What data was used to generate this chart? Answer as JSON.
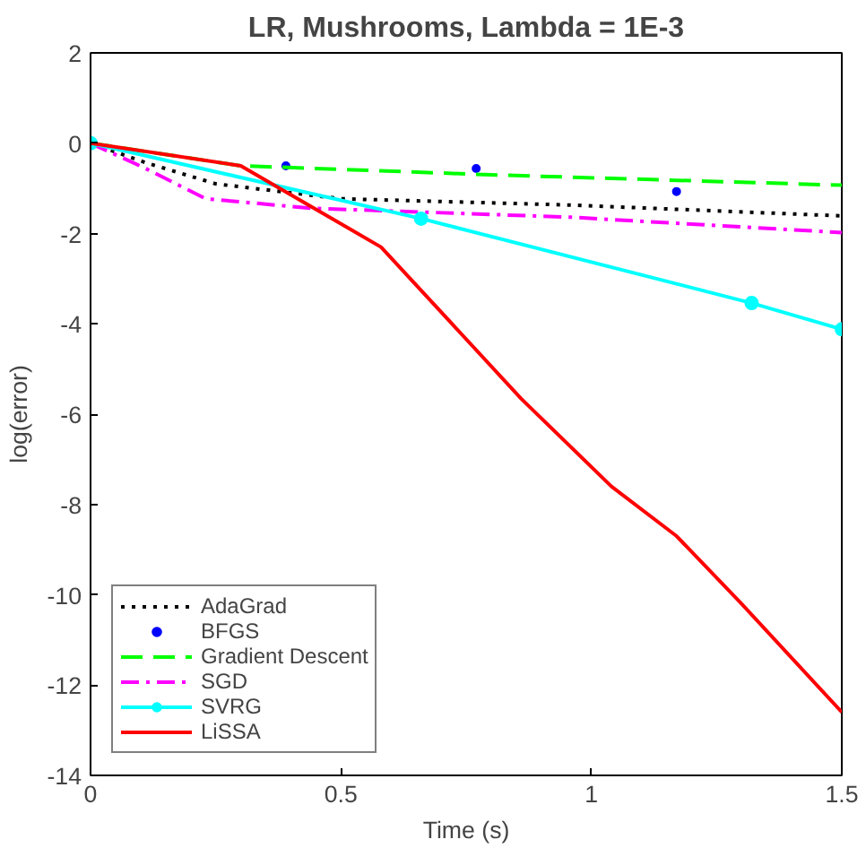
{
  "chart_data": {
    "type": "line",
    "title": "LR, Mushrooms, Lambda = 1E-3",
    "xlabel": "Time (s)",
    "ylabel": "log(error)",
    "xlim": [
      0,
      1.5
    ],
    "xticks": [
      0,
      0.5,
      1,
      1.5
    ],
    "ylim": [
      -14,
      2
    ],
    "yticks": [
      -14,
      -12,
      -10,
      -8,
      -6,
      -4,
      -2,
      0,
      2
    ],
    "grid": false,
    "legend": "bottom left",
    "series": [
      {
        "name": "AdaGrad",
        "color": "#000000",
        "line_style": "dotted",
        "marker": "none",
        "x": [
          0,
          0.11,
          0.25,
          0.5,
          0.96,
          1.5
        ],
        "values": [
          0,
          -0.43,
          -0.9,
          -1.23,
          -1.37,
          -1.61
        ]
      },
      {
        "name": "BFGS",
        "type": "scatter",
        "color": "#0000ff",
        "marker": "circle",
        "x": [
          0.39,
          0.77,
          1.17
        ],
        "values": [
          -0.5,
          -0.56,
          -1.07
        ]
      },
      {
        "name": "Gradient Descent",
        "color": "#00ff00",
        "line_style": "dashed",
        "marker": "none",
        "x": [
          0,
          0.3,
          0.8,
          1.5
        ],
        "values": [
          0,
          -0.5,
          -0.7,
          -0.93
        ]
      },
      {
        "name": "SGD",
        "color": "#ff00ff",
        "line_style": "dashdot",
        "marker": "none",
        "x": [
          0,
          0.11,
          0.23,
          0.44,
          0.96,
          1.5
        ],
        "values": [
          0,
          -0.56,
          -1.23,
          -1.44,
          -1.64,
          -1.98
        ]
      },
      {
        "name": "SVRG",
        "color": "#00ffff",
        "line_style": "solid",
        "marker": "circle",
        "x": [
          0,
          0.66,
          1.32,
          1.5
        ],
        "values": [
          0,
          -1.67,
          -3.54,
          -4.12
        ]
      },
      {
        "name": "LiSSA",
        "color": "#ff0000",
        "line_style": "solid",
        "marker": "none",
        "x": [
          0,
          0.3,
          0.58,
          0.86,
          1.04,
          1.17,
          1.3,
          1.5
        ],
        "values": [
          0,
          -0.5,
          -2.3,
          -5.66,
          -7.6,
          -8.7,
          -10.2,
          -12.6
        ]
      }
    ]
  }
}
